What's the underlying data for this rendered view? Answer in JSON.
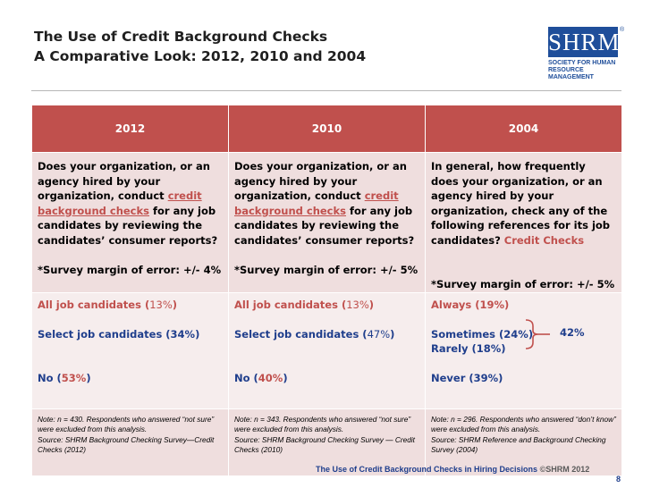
{
  "title": {
    "line1": "The Use of Credit Background Checks",
    "line2": "A Comparative Look: 2012, 2010 and 2004"
  },
  "logo": {
    "mark": "SHRM",
    "reg": "®",
    "tagline1": "SOCIETY FOR HUMAN",
    "tagline2": "RESOURCE MANAGEMENT"
  },
  "columns": [
    {
      "year": "2012",
      "question": {
        "pre": "Does your organization, or an agency hired by your organization, conduct ",
        "highlight": "credit background checks",
        "post": " for any job candidates by reviewing the candidates’ consumer reports?"
      },
      "margin": "*Survey margin of error: +/- 4%",
      "answers": {
        "a1_label": "All job candidates (",
        "a1_value": "13%",
        "a1_close": ")",
        "a2_label": "Select job candidates (34%)",
        "a3_label": "No (",
        "a3_value": "53%",
        "a3_close": ")"
      },
      "note": [
        "Note: n = 430. Respondents who answered “not sure” were excluded from this analysis.",
        "Source: SHRM Background Checking Survey—Credit Checks (2012)"
      ]
    },
    {
      "year": "2010",
      "question": {
        "pre": "Does your organization, or an agency hired by your organization, conduct ",
        "highlight": "credit background checks",
        "post": " for any job candidates by reviewing the candidates’ consumer reports?"
      },
      "margin": "*Survey margin of error: +/- 5%",
      "answers": {
        "a1_label": "All job candidates (",
        "a1_value": "13%",
        "a1_close": ")",
        "a2_label": "Select job candidates (",
        "a2_value": "47%",
        "a2_close": ")",
        "a3_label": "No (",
        "a3_value": "40%",
        "a3_close": ")"
      },
      "note": [
        "Note: n = 343. Respondents who answered “not sure” were excluded from this analysis.",
        "Source: SHRM Background Checking Survey — Credit Checks (2010)"
      ]
    },
    {
      "year": "2004",
      "question": {
        "pre": "In general, how frequently does your organization, or an agency hired by your organization, check any of the following references for its job candidates? ",
        "highlight": "Credit Checks"
      },
      "margin": "*Survey margin of error: +/- 5%",
      "answers": {
        "a1_label": "Always (19%)",
        "a2a_label": "Sometimes (24%)",
        "a2b_label": "Rarely (18%)",
        "combined": "42%",
        "a3_label": "Never (39%)"
      },
      "note": [
        "Note: n = 296. Respondents who answered “don’t know” were excluded from this analysis.",
        "Source: SHRM Reference and Background Checking Survey (2004)"
      ]
    }
  ],
  "footer": {
    "text": "The Use of Credit Background Checks in Hiring Decisions ",
    "copyright": "©SHRM 2012",
    "page": "8"
  },
  "colors": {
    "header_red": "#c0504d",
    "navy": "#1f3e8c",
    "row_pink": "#efdede"
  }
}
